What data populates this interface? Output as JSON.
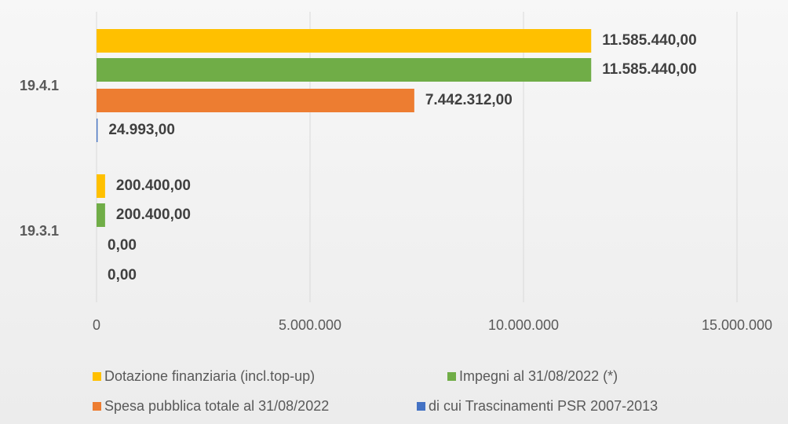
{
  "chart_data": {
    "type": "hbar",
    "categories": [
      "19.4.1",
      "19.3.1"
    ],
    "series": [
      {
        "name": "Dotazione finanziaria (incl.top-up)",
        "color": "#ffc000",
        "values": [
          11585440,
          200400
        ],
        "value_labels": [
          "11.585.440,00",
          "200.400,00"
        ]
      },
      {
        "name": "Impegni al 31/08/2022 (*)",
        "color": "#70ad47",
        "values": [
          11585440,
          200400
        ],
        "value_labels": [
          "11.585.440,00",
          "200.400,00"
        ]
      },
      {
        "name": "Spesa pubblica totale al 31/08/2022",
        "color": "#ed7d31",
        "values": [
          7442312,
          0
        ],
        "value_labels": [
          "7.442.312,00",
          "0,00"
        ]
      },
      {
        "name": "di cui Trascinamenti PSR 2007-2013",
        "color": "#4472c4",
        "values": [
          24993,
          0
        ],
        "value_labels": [
          "24.993,00",
          "0,00"
        ]
      }
    ],
    "xlim": [
      0,
      15000000
    ],
    "xticks": [
      0,
      {
        "value": 5000000,
        "label": "5.000.000"
      },
      {
        "value": 10000000,
        "label": "10.000.000"
      },
      {
        "value": 15000000,
        "label": "15.000.000"
      }
    ],
    "grid": true
  }
}
